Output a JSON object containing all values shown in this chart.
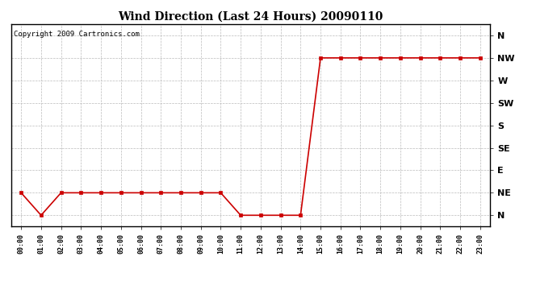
{
  "title": "Wind Direction (Last 24 Hours) 20090110",
  "copyright": "Copyright 2009 Cartronics.com",
  "line_color": "#cc0000",
  "marker": "s",
  "marker_size": 2.5,
  "background_color": "#ffffff",
  "grid_color": "#bbbbbb",
  "ytick_labels": [
    "N",
    "NE",
    "E",
    "SE",
    "S",
    "SW",
    "W",
    "NW",
    "N"
  ],
  "ytick_values": [
    0,
    1,
    2,
    3,
    4,
    5,
    6,
    7,
    8
  ],
  "hours": [
    0,
    1,
    2,
    3,
    4,
    5,
    6,
    7,
    8,
    9,
    10,
    11,
    12,
    13,
    14,
    15,
    16,
    17,
    18,
    19,
    20,
    21,
    22,
    23
  ],
  "wind_values": [
    1,
    0,
    1,
    1,
    1,
    1,
    1,
    1,
    1,
    1,
    1,
    0,
    0,
    0,
    0,
    7,
    7,
    7,
    7,
    7,
    7,
    7,
    7,
    7
  ],
  "xlim": [
    -0.5,
    23.5
  ],
  "ylim": [
    -0.5,
    8.5
  ],
  "title_fontsize": 10,
  "copyright_fontsize": 6.5,
  "xtick_fontsize": 6,
  "ytick_fontsize": 8
}
